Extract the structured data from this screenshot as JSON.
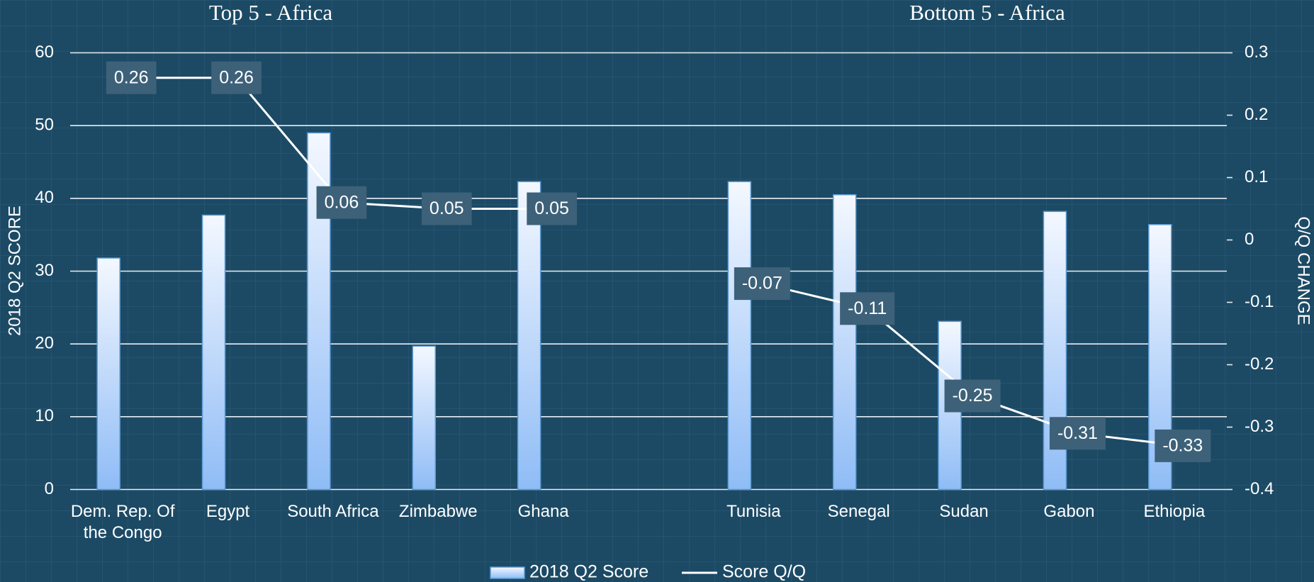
{
  "chart_data": {
    "type": "bar_line",
    "annotations": [
      "Top 5 - Africa",
      "Bottom 5 - Africa"
    ],
    "ylabel": "2018 Q2 SCORE",
    "y2label": "Q/Q CHANGE",
    "categories": [
      "Dem. Rep. Of the Congo",
      "Egypt",
      "South Africa",
      "Zimbabwe",
      "Ghana",
      null,
      "Tunisia",
      "Senegal",
      "Sudan",
      "Gabon",
      "Ethiopia"
    ],
    "series": [
      {
        "name": "2018 Q2 Score",
        "type": "bar",
        "color": "#8fbcf6",
        "values": [
          31.8,
          37.7,
          49,
          19.7,
          42.3,
          null,
          42.3,
          40.5,
          23.1,
          38.2,
          36.4
        ]
      },
      {
        "name": "Score Q/Q",
        "type": "line",
        "axis": "y2",
        "color": "#ffffff",
        "values": [
          0.26,
          0.26,
          0.06,
          0.05,
          0.05,
          null,
          -0.07,
          -0.11,
          -0.25,
          -0.31,
          -0.33
        ]
      }
    ],
    "ylim": [
      0,
      60
    ],
    "yticks": [
      0,
      10,
      20,
      30,
      40,
      50,
      60
    ],
    "y2lim": [
      -0.4,
      0.3
    ],
    "y2ticks": [
      -0.4,
      -0.3,
      -0.2,
      -0.1,
      0,
      0.1,
      0.2,
      0.3
    ],
    "grid": true,
    "legend": "bottom"
  }
}
